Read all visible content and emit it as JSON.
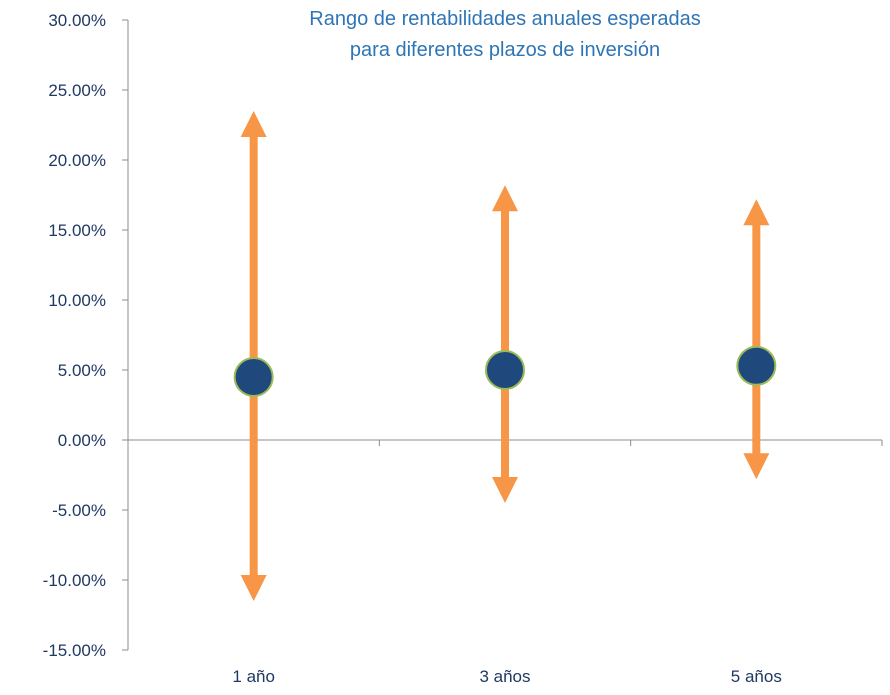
{
  "chart_data": {
    "type": "range",
    "title_lines": [
      "Rango de rentabilidades anuales esperadas",
      "para diferentes plazos de inversión"
    ],
    "categories": [
      "1 año",
      "3 años",
      "5 años"
    ],
    "series": [
      {
        "low": -11.5,
        "high": 23.5,
        "mid": 4.5
      },
      {
        "low": -4.5,
        "high": 18.2,
        "mid": 5.0
      },
      {
        "low": -2.8,
        "high": 17.2,
        "mid": 5.3
      }
    ],
    "ylim": [
      -15,
      30
    ],
    "yticks": [
      30,
      25,
      20,
      15,
      10,
      5,
      0,
      -5,
      -10,
      -15
    ],
    "ytick_labels": [
      "30.00%",
      "25.00%",
      "20.00%",
      "15.00%",
      "10.00%",
      "5.00%",
      "0.00%",
      "-5.00%",
      "-10.00%",
      "-15.00%"
    ],
    "grid": false,
    "colors": {
      "arrow": "#f79646",
      "marker_fill": "#1f497d",
      "marker_stroke": "#9bbb59",
      "axis": "#8c8c8c",
      "text": "#1f3864",
      "title": "#2e75b6"
    }
  }
}
